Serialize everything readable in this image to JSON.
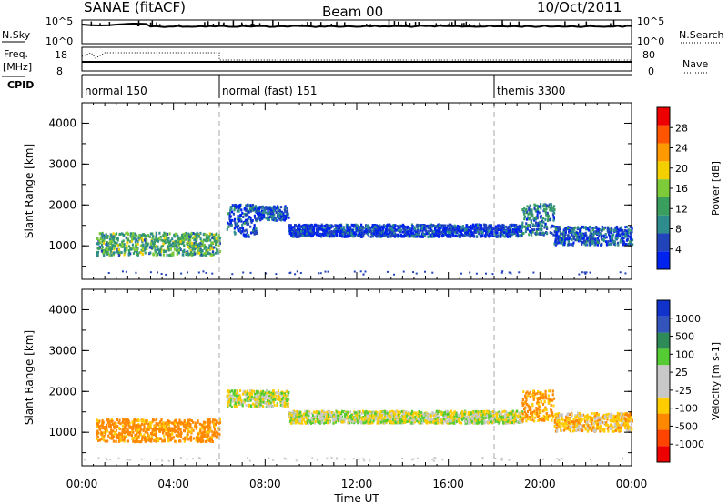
{
  "header": {
    "station": "SANAE (fitACF)",
    "beam": "Beam 00",
    "date": "10/Oct/2011"
  },
  "time_axis": {
    "label": "Time UT",
    "tick_labels": [
      "00:00",
      "04:00",
      "08:00",
      "12:00",
      "16:00",
      "20:00",
      "00:00"
    ],
    "range_hours": [
      0,
      24
    ]
  },
  "range_axis": {
    "label": "Slant Range [km]",
    "tick_labels": [
      "1000",
      "2000",
      "3000",
      "4000"
    ],
    "range_km": [
      180,
      4500
    ]
  },
  "summary_panels": {
    "nsky": {
      "label": "N.Sky",
      "ticks": [
        "10^5",
        "10^0"
      ],
      "right_label": "N.Search",
      "right_ticks": [
        "10^5",
        "10^0"
      ]
    },
    "freq": {
      "label": "Freq.",
      "unit": "[MHz]",
      "ticks": [
        "18",
        "8"
      ],
      "right_label": "Nave",
      "right_ticks": [
        "80",
        "0"
      ]
    },
    "cpid": {
      "label": "CPID",
      "modes": [
        {
          "name": "normal 150",
          "start_h": 0
        },
        {
          "name": "normal (fast) 151",
          "start_h": 6
        },
        {
          "name": "themis 3300",
          "start_h": 18
        }
      ]
    }
  },
  "colors": {
    "power": [
      "#0022ee",
      "#2244bb",
      "#2f8c8c",
      "#3a9e5e",
      "#7ecb3a",
      "#f5d000",
      "#ff9900",
      "#ff5500",
      "#ee0000"
    ],
    "velocity": [
      "#ee0000",
      "#ff4400",
      "#ff8800",
      "#ffcc00",
      "#c8c8c8",
      "#c8c8c8",
      "#55cc33",
      "#2e8b57",
      "#3355bb",
      "#1133cc"
    ]
  },
  "chart_data": [
    {
      "type": "heatmap",
      "title": "Power",
      "xlabel": "Time UT",
      "ylabel": "Slant Range [km]",
      "colorbar": {
        "label": "Power [dB]",
        "unit": "dB",
        "ticks": [
          "4",
          "8",
          "12",
          "16",
          "20",
          "24",
          "28"
        ],
        "range": [
          0,
          32
        ]
      },
      "xlim": [
        0,
        24
      ],
      "ylim": [
        180,
        4500
      ],
      "segments": [
        {
          "t0": 0.6,
          "t1": 6.0,
          "r0": 800,
          "r1": 1350,
          "value": 14
        },
        {
          "t0": 6.3,
          "t1": 7.6,
          "r0": 1250,
          "r1": 2050,
          "value": 6
        },
        {
          "t0": 7.6,
          "t1": 9.0,
          "r0": 1650,
          "r1": 2000,
          "value": 5
        },
        {
          "t0": 9.0,
          "t1": 19.2,
          "r0": 1250,
          "r1": 1550,
          "value": 4
        },
        {
          "t0": 19.2,
          "t1": 20.6,
          "r0": 1300,
          "r1": 2050,
          "value": 9
        },
        {
          "t0": 20.6,
          "t1": 24.0,
          "r0": 1050,
          "r1": 1500,
          "value": 6
        }
      ]
    },
    {
      "type": "heatmap",
      "title": "Velocity",
      "xlabel": "Time UT",
      "ylabel": "Slant Range [km]",
      "colorbar": {
        "label": "Velocity [m s-1]",
        "unit": "m s-1",
        "ticks": [
          "-1000",
          "-500",
          "-100",
          "-25",
          "25",
          "100",
          "500",
          "1000"
        ]
      },
      "xlim": [
        0,
        24
      ],
      "ylim": [
        180,
        4500
      ],
      "segments": [
        {
          "t0": 0.6,
          "t1": 6.0,
          "r0": 800,
          "r1": 1350,
          "value": -150
        },
        {
          "t0": 6.3,
          "t1": 9.0,
          "r0": 1650,
          "r1": 2050,
          "value": 0
        },
        {
          "t0": 9.0,
          "t1": 19.2,
          "r0": 1250,
          "r1": 1550,
          "value": 0
        },
        {
          "t0": 19.2,
          "t1": 20.6,
          "r0": 1300,
          "r1": 2050,
          "value": -120
        },
        {
          "t0": 20.6,
          "t1": 24.0,
          "r0": 1050,
          "r1": 1500,
          "value": -60
        }
      ]
    }
  ]
}
